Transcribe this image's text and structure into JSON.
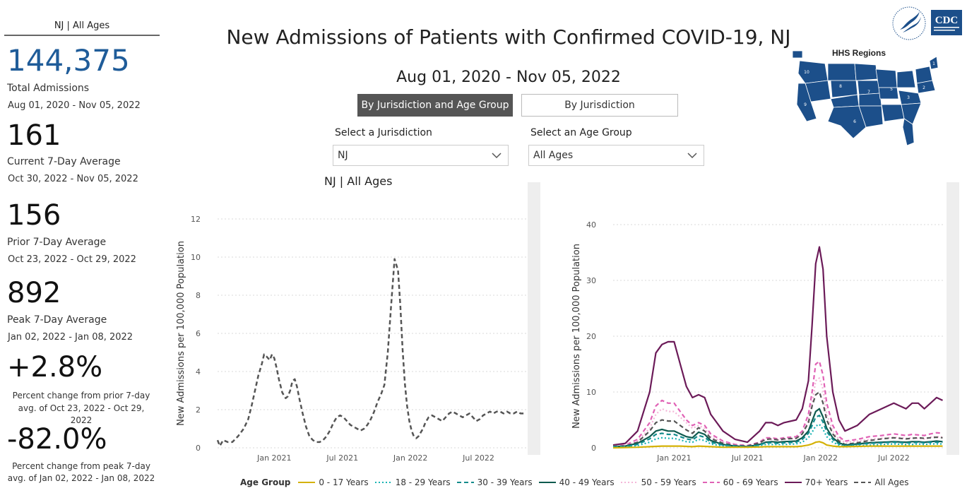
{
  "left_panel": {
    "header": "NJ | All Ages",
    "total": {
      "value": "144,375",
      "label": "Total Admissions",
      "range": "Aug 01, 2020 - Nov 05, 2022"
    },
    "current": {
      "value": "161",
      "label": "Current 7-Day Average",
      "range": "Oct 30, 2022 - Nov 05, 2022"
    },
    "prior": {
      "value": "156",
      "label": "Prior 7-Day Average",
      "range": "Oct 23, 2022 - Oct 29, 2022"
    },
    "peak": {
      "value": "892",
      "label": "Peak 7-Day Average",
      "range": "Jan 02, 2022 - Jan 08, 2022"
    },
    "pct_prior": {
      "value": "+2.8%",
      "line1": "Percent change from prior 7-day",
      "line2": "avg. of Oct 23, 2022 - Oct 29, 2022"
    },
    "pct_peak": {
      "value": "-82.0%",
      "line1": "Percent change from peak 7-day",
      "line2": "avg. of Jan 02, 2022 - Jan 08, 2022"
    }
  },
  "header": {
    "title": "New Admissions of Patients with Confirmed COVID-19, NJ",
    "date_range": "Aug 01, 2020 - Nov 05, 2022"
  },
  "toggles": {
    "by_age": "By Jurisdiction and Age Group",
    "by_jurisdiction": "By Jurisdiction"
  },
  "filters": {
    "jurisdiction_label": "Select a Jurisdiction",
    "jurisdiction_value": "NJ",
    "age_label": "Select an Age Group",
    "age_value": "All Ages"
  },
  "chart_subtitle": "NJ | All Ages",
  "logos": {
    "hhs_regions_label": "HHS Regions",
    "cdc_text": "CDC",
    "map_region_numbers": [
      "1",
      "2",
      "3",
      "4",
      "5",
      "6",
      "7",
      "8",
      "9",
      "10"
    ]
  },
  "legend": {
    "title": "Age Group",
    "items": [
      {
        "name": "0 - 17 Years",
        "color": "#d4b106",
        "dash": "solid"
      },
      {
        "name": "18 - 29 Years",
        "color": "#17b3b3",
        "dash": "dotted"
      },
      {
        "name": "30 - 39 Years",
        "color": "#138c8c",
        "dash": "dashed"
      },
      {
        "name": "40 - 49 Years",
        "color": "#0e5a4e",
        "dash": "solid"
      },
      {
        "name": "50 - 59 Years",
        "color": "#f4b6d8",
        "dash": "dotted"
      },
      {
        "name": "60 - 69 Years",
        "color": "#e062b5",
        "dash": "dashed"
      },
      {
        "name": "70+ Years",
        "color": "#6b1a58",
        "dash": "solid"
      },
      {
        "name": "All Ages",
        "color": "#555555",
        "dash": "dashed"
      }
    ]
  },
  "chart_data": [
    {
      "type": "line",
      "ylabel": "New Admissions per 100,000 Population",
      "ylim": [
        0,
        12
      ],
      "yticks": [
        0,
        2,
        4,
        6,
        8,
        10,
        12
      ],
      "xtick_labels": [
        "Jan 2021",
        "Jul 2021",
        "Jan 2022",
        "Jul 2022"
      ],
      "xtick_months": [
        5,
        11,
        17,
        23
      ],
      "xlim_months": [
        0,
        27.2
      ],
      "grid": true,
      "series": [
        {
          "name": "All Ages",
          "color": "#555555",
          "dash": "dashed",
          "x": [
            0,
            0.2,
            0.5,
            0.9,
            1.3,
            1.8,
            2.3,
            2.7,
            3.0,
            3.3,
            3.6,
            3.9,
            4.1,
            4.3,
            4.6,
            4.8,
            5.0,
            5.2,
            5.4,
            5.7,
            6.0,
            6.2,
            6.4,
            6.6,
            6.8,
            7.0,
            7.2,
            7.5,
            7.8,
            8.1,
            8.4,
            8.7,
            9.0,
            9.3,
            9.6,
            9.9,
            10.2,
            10.5,
            10.8,
            11.1,
            11.4,
            11.7,
            12.0,
            12.3,
            12.6,
            12.9,
            13.2,
            13.5,
            13.8,
            14.1,
            14.4,
            14.7,
            15.0,
            15.3,
            15.6,
            15.9,
            16.1,
            16.3,
            16.5,
            16.7,
            16.9,
            17.1,
            17.3,
            17.5,
            17.7,
            17.9,
            18.1,
            18.3,
            18.6,
            18.9,
            19.2,
            19.5,
            19.8,
            20.1,
            20.4,
            20.7,
            21.0,
            21.3,
            21.6,
            21.9,
            22.2,
            22.5,
            22.8,
            23.1,
            23.4,
            23.7,
            24.0,
            24.3,
            24.6,
            24.9,
            25.2,
            25.5,
            25.8,
            26.1,
            26.4,
            26.7,
            27.0
          ],
          "values": [
            0.4,
            0.1,
            0.4,
            0.3,
            0.3,
            0.6,
            1.0,
            1.5,
            2.2,
            3.0,
            3.8,
            4.4,
            4.9,
            4.8,
            4.6,
            4.9,
            4.7,
            4.2,
            3.6,
            2.9,
            2.6,
            2.7,
            3.0,
            3.5,
            3.6,
            3.2,
            2.6,
            1.8,
            1.1,
            0.6,
            0.4,
            0.3,
            0.3,
            0.4,
            0.6,
            0.9,
            1.3,
            1.6,
            1.7,
            1.6,
            1.4,
            1.2,
            1.1,
            1.0,
            0.9,
            1.0,
            1.2,
            1.5,
            1.9,
            2.4,
            2.8,
            3.3,
            5.0,
            7.5,
            9.9,
            9.3,
            7.5,
            5.2,
            3.4,
            2.2,
            1.4,
            0.9,
            0.6,
            0.5,
            0.6,
            0.8,
            1.0,
            1.3,
            1.6,
            1.7,
            1.6,
            1.5,
            1.4,
            1.6,
            1.8,
            1.9,
            1.8,
            1.7,
            1.6,
            1.7,
            1.8,
            1.6,
            1.4,
            1.5,
            1.7,
            1.8,
            1.9,
            1.8,
            1.9,
            1.9,
            1.8,
            1.9,
            1.8,
            1.8,
            1.9,
            1.8,
            1.8
          ]
        }
      ]
    },
    {
      "type": "line",
      "ylabel": "New Admissions per 100,000 Population",
      "ylim": [
        0,
        40
      ],
      "yticks": [
        0,
        10,
        20,
        30,
        40
      ],
      "xtick_labels": [
        "Jan 2021",
        "Jul 2021",
        "Jan 2022",
        "Jul 2022"
      ],
      "xtick_months": [
        5,
        11,
        17,
        23
      ],
      "xlim_months": [
        0,
        27.2
      ],
      "grid": true,
      "x": [
        0,
        1,
        2,
        3,
        3.5,
        4,
        4.5,
        5,
        5.5,
        6,
        6.5,
        7,
        7.5,
        8,
        9,
        10,
        11,
        12,
        12.5,
        13,
        13.5,
        14,
        15,
        15.5,
        16,
        16.3,
        16.6,
        16.9,
        17.2,
        17.5,
        18,
        18.5,
        19,
        20,
        21,
        22,
        23,
        24,
        24.5,
        25,
        25.5,
        26,
        26.5,
        27
      ],
      "series": [
        {
          "name": "70+ Years",
          "color": "#6b1a58",
          "dash": "solid",
          "values": [
            0.5,
            0.8,
            3,
            10,
            17,
            18.5,
            19,
            19,
            15,
            11,
            9,
            9.5,
            9,
            6,
            3,
            1.5,
            1,
            3,
            4.5,
            4.5,
            4,
            4.5,
            5,
            7,
            12,
            22,
            33,
            36,
            32,
            20,
            10,
            5,
            3,
            4,
            6,
            7,
            8,
            7,
            8,
            8,
            7,
            8,
            9,
            8.5
          ]
        },
        {
          "name": "60 - 69 Years",
          "color": "#e062b5",
          "dash": "dashed",
          "values": [
            0.3,
            0.5,
            1.5,
            4.5,
            7.5,
            8.5,
            8,
            8,
            6.5,
            5,
            4,
            4.5,
            4,
            2.5,
            1.2,
            0.6,
            0.4,
            1,
            1.8,
            1.8,
            1.6,
            1.8,
            2,
            3,
            6,
            10,
            15,
            15.5,
            13,
            8,
            4,
            2,
            1.2,
            1.5,
            2,
            2.2,
            2.5,
            2.2,
            2.4,
            2.3,
            2.2,
            2.5,
            2.7,
            2.6
          ]
        },
        {
          "name": "50 - 59 Years",
          "color": "#f4b6d8",
          "dash": "dotted",
          "values": [
            0.3,
            0.4,
            1.2,
            3.5,
            6,
            7,
            6.5,
            6.5,
            5.5,
            4.5,
            3.5,
            4,
            3.5,
            2,
            1,
            0.5,
            0.3,
            0.8,
            1.5,
            1.5,
            1.4,
            1.5,
            1.7,
            2.5,
            5,
            8,
            12,
            12.5,
            10.5,
            6,
            3,
            1.5,
            1,
            1.2,
            1.5,
            1.7,
            1.9,
            1.7,
            1.8,
            1.7,
            1.6,
            1.9,
            2,
            1.9
          ]
        },
        {
          "name": "All Ages",
          "color": "#555555",
          "dash": "dashed",
          "values": [
            0.3,
            0.3,
            1,
            3,
            4.5,
            5,
            4.8,
            4.8,
            4,
            3.2,
            2.6,
            3.6,
            3,
            1.7,
            0.8,
            0.4,
            0.3,
            0.9,
            1.5,
            1.6,
            1.4,
            1.6,
            1.7,
            2.5,
            4.5,
            7.5,
            9.5,
            10,
            8,
            5,
            2.5,
            1.2,
            0.6,
            0.9,
            1.3,
            1.6,
            1.8,
            1.6,
            1.7,
            1.8,
            1.7,
            1.8,
            1.9,
            1.8
          ]
        },
        {
          "name": "40 - 49 Years",
          "color": "#0e5a4e",
          "dash": "solid",
          "values": [
            0.2,
            0.3,
            0.8,
            2,
            3,
            3.3,
            3,
            3,
            2.5,
            2,
            1.8,
            2.8,
            2.4,
            1.3,
            0.6,
            0.3,
            0.2,
            0.6,
            1,
            1.1,
            1,
            1.1,
            1.2,
            1.8,
            3,
            4.8,
            6.5,
            7,
            5.5,
            3.5,
            1.8,
            0.9,
            0.5,
            0.7,
            0.9,
            1,
            1.1,
            1,
            1.1,
            1.1,
            1,
            1.1,
            1.2,
            1.1
          ]
        },
        {
          "name": "30 - 39 Years",
          "color": "#138c8c",
          "dash": "dashed",
          "values": [
            0.2,
            0.2,
            0.6,
            1.6,
            2.4,
            2.6,
            2.4,
            2.4,
            2,
            1.6,
            1.4,
            2.2,
            1.9,
            1,
            0.5,
            0.3,
            0.2,
            0.5,
            0.9,
            0.9,
            0.8,
            0.9,
            1,
            1.5,
            2.6,
            4,
            5.5,
            5.8,
            4.6,
            2.9,
            1.5,
            0.7,
            0.4,
            0.6,
            0.8,
            0.9,
            1,
            0.9,
            0.9,
            1,
            0.9,
            1,
            1,
            1
          ]
        },
        {
          "name": "18 - 29 Years",
          "color": "#17b3b3",
          "dash": "dotted",
          "values": [
            0.1,
            0.2,
            0.4,
            1,
            1.6,
            1.8,
            1.7,
            1.7,
            1.4,
            1.1,
            1,
            1.5,
            1.3,
            0.7,
            0.3,
            0.2,
            0.1,
            0.4,
            0.6,
            0.6,
            0.6,
            0.6,
            0.7,
            1,
            1.8,
            2.8,
            3.9,
            4.2,
            3.3,
            2,
            1,
            0.5,
            0.3,
            0.4,
            0.5,
            0.6,
            0.7,
            0.6,
            0.6,
            0.7,
            0.6,
            0.7,
            0.7,
            0.7
          ]
        },
        {
          "name": "0 - 17 Years",
          "color": "#d4b106",
          "dash": "solid",
          "values": [
            0,
            0.05,
            0.1,
            0.2,
            0.25,
            0.3,
            0.3,
            0.3,
            0.3,
            0.25,
            0.2,
            0.3,
            0.25,
            0.2,
            0.1,
            0.1,
            0.1,
            0.15,
            0.2,
            0.2,
            0.2,
            0.2,
            0.2,
            0.3,
            0.5,
            0.7,
            1,
            1.1,
            0.9,
            0.5,
            0.3,
            0.2,
            0.2,
            0.25,
            0.3,
            0.3,
            0.3,
            0.3,
            0.3,
            0.3,
            0.3,
            0.3,
            0.3,
            0.3
          ]
        }
      ]
    }
  ]
}
